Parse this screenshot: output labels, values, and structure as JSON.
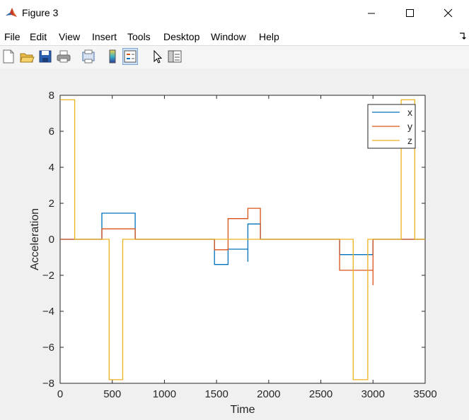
{
  "window": {
    "title": "Figure 3"
  },
  "menu": [
    "File",
    "Edit",
    "View",
    "Insert",
    "Tools",
    "Desktop",
    "Window",
    "Help"
  ],
  "toolbar": [
    "new-figure-icon",
    "open-file-icon",
    "save-icon",
    "print-icon",
    "print-preview-icon",
    "colorbar-icon",
    "legend-icon",
    "pointer-icon",
    "property-editor-icon"
  ],
  "chart_data": {
    "type": "line",
    "xlabel": "Time",
    "ylabel": "Acceleration",
    "xlim": [
      0,
      3500
    ],
    "ylim": [
      -8,
      8
    ],
    "xticks": [
      0,
      500,
      1000,
      1500,
      2000,
      2500,
      3000,
      3500
    ],
    "yticks": [
      -8,
      -6,
      -4,
      -2,
      0,
      2,
      4,
      6,
      8
    ],
    "legend_position": "top-right",
    "series": [
      {
        "name": "x",
        "color": "#0072BD",
        "points": [
          [
            0,
            0
          ],
          [
            400,
            0
          ],
          [
            400,
            1.45
          ],
          [
            720,
            1.45
          ],
          [
            720,
            0
          ],
          [
            1480,
            0
          ],
          [
            1480,
            -1.4
          ],
          [
            1610,
            -1.4
          ],
          [
            1610,
            -0.55
          ],
          [
            1800,
            -0.55
          ],
          [
            1800,
            -1.25
          ],
          [
            1800,
            0.85
          ],
          [
            1920,
            0.85
          ],
          [
            1920,
            0
          ],
          [
            2680,
            0
          ],
          [
            2680,
            -0.85
          ],
          [
            3000,
            -0.85
          ],
          [
            3000,
            0
          ],
          [
            3500,
            0
          ]
        ]
      },
      {
        "name": "y",
        "color": "#D95319",
        "points": [
          [
            0,
            0
          ],
          [
            400,
            0
          ],
          [
            400,
            0.58
          ],
          [
            720,
            0.58
          ],
          [
            720,
            0
          ],
          [
            1480,
            0
          ],
          [
            1480,
            -0.58
          ],
          [
            1610,
            -0.58
          ],
          [
            1610,
            1.15
          ],
          [
            1800,
            1.15
          ],
          [
            1800,
            1.72
          ],
          [
            1920,
            1.72
          ],
          [
            1920,
            0
          ],
          [
            2680,
            0
          ],
          [
            2680,
            -1.72
          ],
          [
            3000,
            -1.72
          ],
          [
            3000,
            -2.55
          ],
          [
            3000,
            0
          ],
          [
            3500,
            0
          ]
        ]
      },
      {
        "name": "z",
        "color": "#EDB120",
        "points": [
          [
            0,
            7.75
          ],
          [
            140,
            7.75
          ],
          [
            140,
            0
          ],
          [
            470,
            0
          ],
          [
            470,
            -7.8
          ],
          [
            600,
            -7.8
          ],
          [
            600,
            0
          ],
          [
            2810,
            0
          ],
          [
            2810,
            -7.8
          ],
          [
            2950,
            -7.8
          ],
          [
            2950,
            0
          ],
          [
            3270,
            0
          ],
          [
            3270,
            7.75
          ],
          [
            3400,
            7.75
          ],
          [
            3400,
            0
          ],
          [
            3500,
            0
          ]
        ]
      }
    ]
  }
}
